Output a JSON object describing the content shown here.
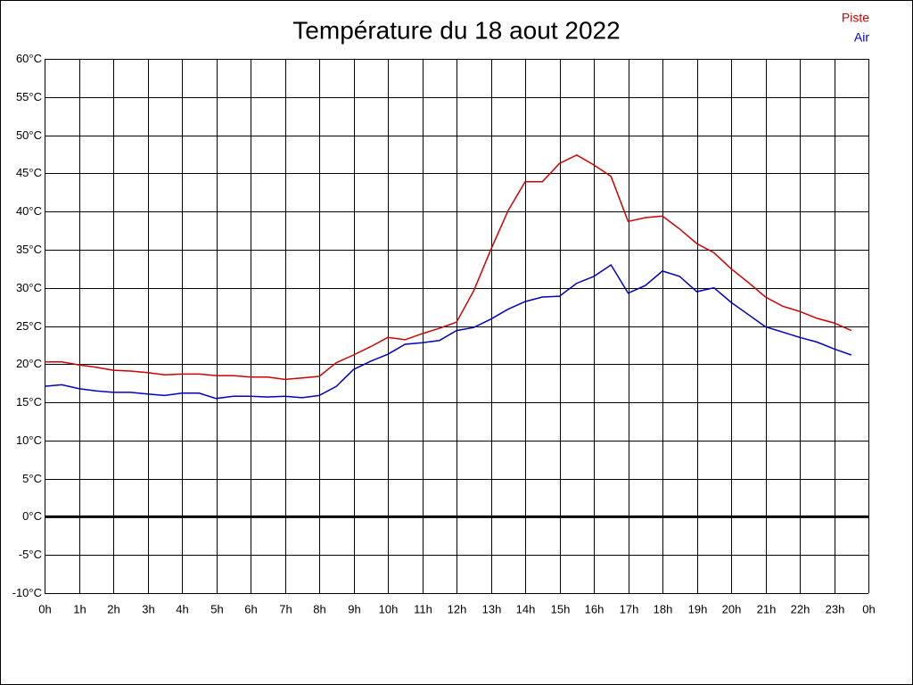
{
  "chart_data": {
    "type": "line",
    "title": "Température du 18 aout 2022",
    "x": [
      0,
      0.5,
      1,
      1.5,
      2,
      2.5,
      3,
      3.5,
      4,
      4.5,
      5,
      5.5,
      6,
      6.5,
      7,
      7.5,
      8,
      8.5,
      9,
      9.5,
      10,
      10.5,
      11,
      11.5,
      12,
      12.5,
      13,
      13.5,
      14,
      14.5,
      15,
      15.5,
      16,
      16.5,
      17,
      17.5,
      18,
      18.5,
      19,
      19.5,
      20,
      20.5,
      21,
      21.5,
      22,
      22.5,
      23,
      23.5
    ],
    "series": [
      {
        "name": "Piste",
        "color": "#d00000",
        "values": [
          20.3,
          20.3,
          19.9,
          19.6,
          19.2,
          19.1,
          18.9,
          18.6,
          18.7,
          18.7,
          18.5,
          18.5,
          18.3,
          18.3,
          18.0,
          18.2,
          18.4,
          20.2,
          21.2,
          22.3,
          23.5,
          23.2,
          24.0,
          24.7,
          25.5,
          29.6,
          35.0,
          40.1,
          43.9,
          43.9,
          46.3,
          47.4,
          46.1,
          44.6,
          38.7,
          39.2,
          39.4,
          37.7,
          35.8,
          34.6,
          32.5,
          30.7,
          28.8,
          27.6,
          26.9,
          26.0,
          25.4,
          24.4
        ]
      },
      {
        "name": "Air",
        "color": "#0000c0",
        "values": [
          17.1,
          17.3,
          16.8,
          16.5,
          16.3,
          16.3,
          16.1,
          15.9,
          16.2,
          16.2,
          15.5,
          15.8,
          15.8,
          15.7,
          15.8,
          15.6,
          15.9,
          17.1,
          19.3,
          20.4,
          21.3,
          22.6,
          22.8,
          23.1,
          24.4,
          24.8,
          25.9,
          27.2,
          28.2,
          28.8,
          28.9,
          30.6,
          31.5,
          33.0,
          29.3,
          30.3,
          32.2,
          31.5,
          29.5,
          30.0,
          28.1,
          26.5,
          24.9,
          24.2,
          23.5,
          22.9,
          22.0,
          21.2
        ]
      }
    ],
    "xlim": [
      0,
      24
    ],
    "xticks": [
      {
        "value": 0,
        "label": "0h"
      },
      {
        "value": 1,
        "label": "1h"
      },
      {
        "value": 2,
        "label": "2h"
      },
      {
        "value": 3,
        "label": "3h"
      },
      {
        "value": 4,
        "label": "4h"
      },
      {
        "value": 5,
        "label": "5h"
      },
      {
        "value": 6,
        "label": "6h"
      },
      {
        "value": 7,
        "label": "7h"
      },
      {
        "value": 8,
        "label": "8h"
      },
      {
        "value": 9,
        "label": "9h"
      },
      {
        "value": 10,
        "label": "10h"
      },
      {
        "value": 11,
        "label": "11h"
      },
      {
        "value": 12,
        "label": "12h"
      },
      {
        "value": 13,
        "label": "13h"
      },
      {
        "value": 14,
        "label": "14h"
      },
      {
        "value": 15,
        "label": "15h"
      },
      {
        "value": 16,
        "label": "16h"
      },
      {
        "value": 17,
        "label": "17h"
      },
      {
        "value": 18,
        "label": "18h"
      },
      {
        "value": 19,
        "label": "19h"
      },
      {
        "value": 20,
        "label": "20h"
      },
      {
        "value": 21,
        "label": "21h"
      },
      {
        "value": 22,
        "label": "22h"
      },
      {
        "value": 23,
        "label": "23h"
      },
      {
        "value": 24,
        "label": "0h"
      }
    ],
    "ylim": [
      -10,
      60
    ],
    "yticks": [
      {
        "value": -10,
        "label": "-10°C"
      },
      {
        "value": -5,
        "label": "-5°C"
      },
      {
        "value": 0,
        "label": "0°C"
      },
      {
        "value": 5,
        "label": "5°C"
      },
      {
        "value": 10,
        "label": "10°C"
      },
      {
        "value": 15,
        "label": "15°C"
      },
      {
        "value": 20,
        "label": "20°C"
      },
      {
        "value": 25,
        "label": "25°C"
      },
      {
        "value": 30,
        "label": "30°C"
      },
      {
        "value": 35,
        "label": "35°C"
      },
      {
        "value": 40,
        "label": "40°C"
      },
      {
        "value": 45,
        "label": "45°C"
      },
      {
        "value": 50,
        "label": "50°C"
      },
      {
        "value": 55,
        "label": "55°C"
      },
      {
        "value": 60,
        "label": "60°C"
      }
    ],
    "grid": true,
    "legend": "top-right"
  }
}
